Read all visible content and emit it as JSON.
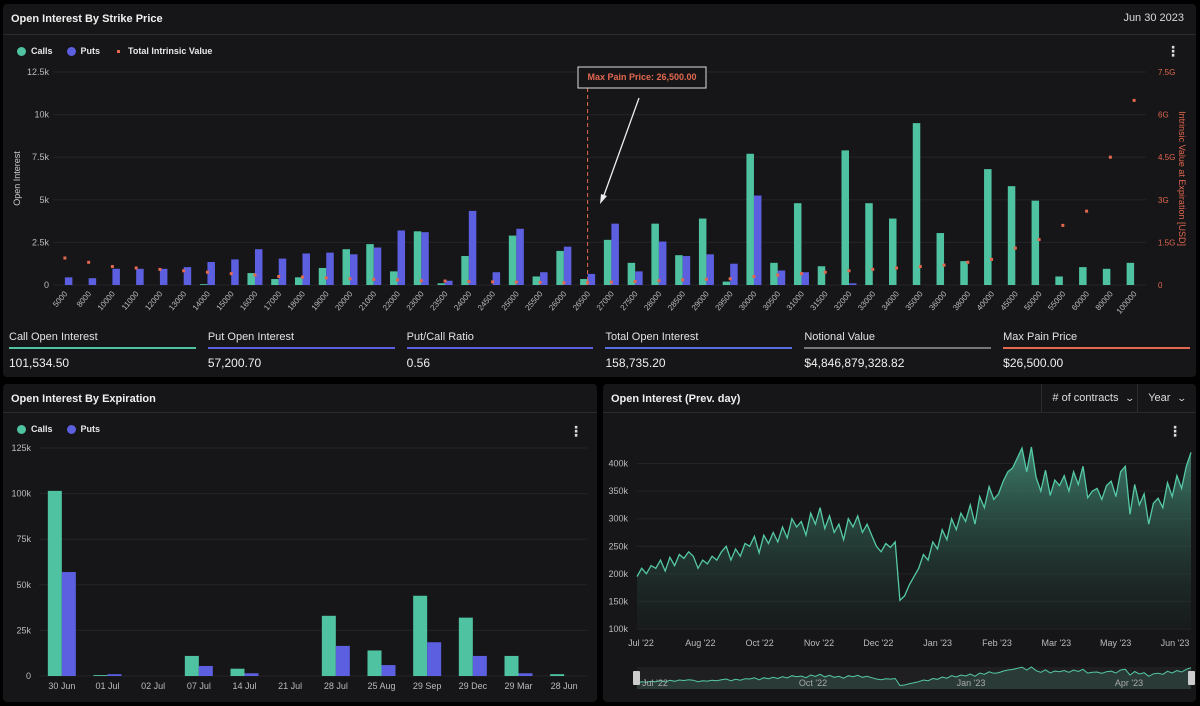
{
  "top_panel": {
    "title": "Open Interest By Strike Price",
    "date": "Jun 30 2023",
    "legend": {
      "calls": "Calls",
      "puts": "Puts",
      "tiv": "Total Intrinsic Value"
    },
    "annotation": "Max Pain Price: 26,500.00"
  },
  "stats": [
    {
      "label": "Call Open Interest",
      "value": "101,534.50",
      "color": "#4fc3a1"
    },
    {
      "label": "Put Open Interest",
      "value": "57,200.70",
      "color": "#5b5fe0"
    },
    {
      "label": "Put/Call Ratio",
      "value": "0.56",
      "color": "#5b5fe0"
    },
    {
      "label": "Total Open Interest",
      "value": "158,735.20",
      "color": "#5b6ee0"
    },
    {
      "label": "Notional Value",
      "value": "$4,846,879,328.82",
      "color": "#777777"
    },
    {
      "label": "Max Pain Price",
      "value": "$26,500.00",
      "color": "#e2684f"
    }
  ],
  "bl_panel": {
    "title": "Open Interest By Expiration",
    "legend": {
      "calls": "Calls",
      "puts": "Puts"
    }
  },
  "br_panel": {
    "title": "Open Interest (Prev. day)",
    "metric_select": "# of contracts",
    "period_select": "Year"
  },
  "colors": {
    "calls": "#4fc3a1",
    "puts": "#5b5fe0",
    "tiv": "#e2684f",
    "bg": "#161618"
  },
  "chart_data": [
    {
      "type": "bar",
      "categories": [
        "5000",
        "8000",
        "10000",
        "11000",
        "12000",
        "13000",
        "14000",
        "15000",
        "16000",
        "17000",
        "18000",
        "19000",
        "20000",
        "21000",
        "22000",
        "23000",
        "23500",
        "24000",
        "24500",
        "25000",
        "25500",
        "26000",
        "26500",
        "27000",
        "27500",
        "28000",
        "28500",
        "29000",
        "29500",
        "30000",
        "30500",
        "31000",
        "31500",
        "32000",
        "33000",
        "34000",
        "35000",
        "36000",
        "38000",
        "40000",
        "45000",
        "50000",
        "55000",
        "60000",
        "80000",
        "100000"
      ],
      "series": [
        {
          "name": "Calls",
          "values": [
            0,
            0,
            0,
            0,
            0,
            0,
            50,
            0,
            700,
            350,
            450,
            1000,
            2100,
            2400,
            800,
            3150,
            100,
            1700,
            0,
            2900,
            500,
            2000,
            350,
            2650,
            1300,
            3600,
            1750,
            3900,
            200,
            7700,
            1300,
            4800,
            1100,
            7900,
            4800,
            3900,
            9500,
            3050,
            1400,
            6800,
            5800,
            4950,
            500,
            1050,
            950,
            1300
          ]
        },
        {
          "name": "Puts",
          "values": [
            450,
            400,
            950,
            950,
            950,
            1050,
            1350,
            1500,
            2100,
            1550,
            1850,
            1900,
            1800,
            2200,
            3200,
            3100,
            250,
            4350,
            750,
            3300,
            750,
            2250,
            650,
            3600,
            800,
            2550,
            1700,
            1800,
            1250,
            5250,
            850,
            750,
            0,
            100,
            0,
            0,
            0,
            0,
            0,
            0,
            0,
            0,
            0,
            0,
            0,
            0
          ]
        },
        {
          "name": "Total Intrinsic Value",
          "values": [
            0.95,
            0.8,
            0.65,
            0.6,
            0.55,
            0.5,
            0.45,
            0.4,
            0.35,
            0.3,
            0.28,
            0.25,
            0.22,
            0.2,
            0.18,
            0.15,
            0.14,
            0.12,
            0.11,
            0.1,
            0.09,
            0.08,
            0.08,
            0.1,
            0.12,
            0.15,
            0.18,
            0.2,
            0.22,
            0.3,
            0.35,
            0.4,
            0.45,
            0.5,
            0.55,
            0.6,
            0.65,
            0.7,
            0.8,
            0.9,
            1.3,
            1.6,
            2.1,
            2.6,
            4.5,
            6.5
          ]
        }
      ],
      "ylabel": "Open Interest",
      "y2label": "Intrinsic Value at Expiration [USD]",
      "ylim": [
        0,
        12500
      ],
      "y2lim": [
        0,
        7.5
      ],
      "yticks": [
        "0",
        "2.5k",
        "5k",
        "7.5k",
        "10k",
        "12.5k"
      ],
      "y2ticks": [
        "0",
        "1.5G",
        "3G",
        "4.5G",
        "6G",
        "7.5G"
      ],
      "max_pain_category": "26500"
    },
    {
      "type": "bar",
      "categories": [
        "30 Jun",
        "01 Jul",
        "02 Jul",
        "07 Jul",
        "14 Jul",
        "21 Jul",
        "28 Jul",
        "25 Aug",
        "29 Sep",
        "29 Dec",
        "29 Mar",
        "28 Jun"
      ],
      "series": [
        {
          "name": "Calls",
          "values": [
            101500,
            500,
            0,
            11000,
            4000,
            0,
            33000,
            14000,
            44000,
            32000,
            11000,
            1000
          ]
        },
        {
          "name": "Puts",
          "values": [
            57000,
            1000,
            0,
            5500,
            1500,
            0,
            16500,
            6000,
            18500,
            11000,
            1500,
            0
          ]
        }
      ],
      "ylim": [
        0,
        125000
      ],
      "yticks": [
        "0",
        "25k",
        "50k",
        "75k",
        "100k",
        "125k"
      ]
    },
    {
      "type": "area",
      "x_ticks": [
        "Jul '22",
        "Aug '22",
        "Oct '22",
        "Nov '22",
        "Dec '22",
        "Jan '23",
        "Feb '23",
        "Mar '23",
        "May '23",
        "Jun '23"
      ],
      "values": [
        195,
        210,
        200,
        215,
        210,
        225,
        205,
        230,
        215,
        235,
        228,
        240,
        232,
        210,
        225,
        218,
        232,
        225,
        240,
        250,
        225,
        245,
        232,
        255,
        250,
        268,
        238,
        270,
        255,
        275,
        258,
        285,
        265,
        300,
        285,
        295,
        270,
        310,
        290,
        320,
        282,
        305,
        275,
        290,
        262,
        300,
        285,
        305,
        275,
        290,
        270,
        250,
        240,
        255,
        248,
        258,
        152,
        160,
        180,
        195,
        210,
        235,
        225,
        258,
        245,
        280,
        262,
        300,
        280,
        310,
        295,
        325,
        290,
        340,
        320,
        358,
        335,
        345,
        368,
        385,
        392,
        410,
        428,
        385,
        430,
        375,
        350,
        388,
        342,
        370,
        360,
        378,
        350,
        385,
        362,
        395,
        338,
        350,
        355,
        335,
        360,
        368,
        340,
        385,
        395,
        308,
        362,
        325,
        345,
        290,
        328,
        337,
        320,
        365,
        340,
        378,
        355,
        395,
        420
      ],
      "ylim": [
        100,
        430
      ],
      "yticks": [
        "100k",
        "150k",
        "200k",
        "250k",
        "300k",
        "350k",
        "400k"
      ],
      "navigator_ticks": [
        "Jul '22",
        "Oct '22",
        "Jan '23",
        "Apr '23"
      ]
    }
  ]
}
